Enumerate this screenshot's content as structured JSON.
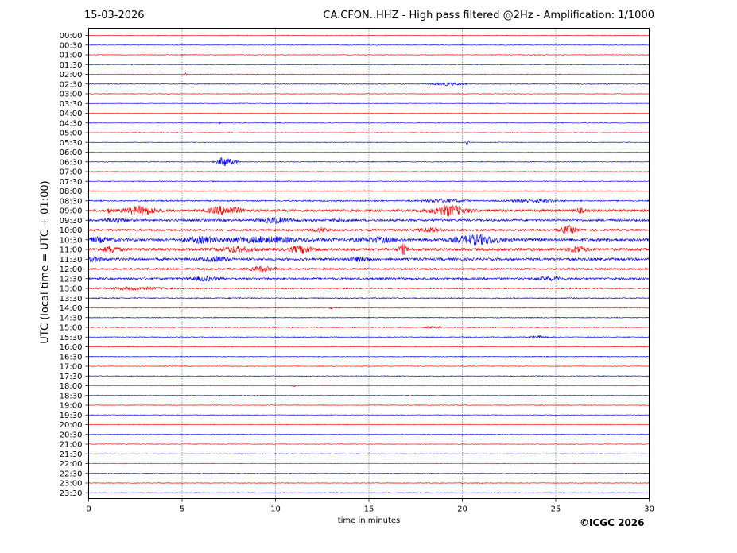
{
  "header": {
    "date": "15-03-2026",
    "station_title": "CA.CFON..HHZ - High pass filtered @2Hz - Amplification: 1/1000"
  },
  "footer": {
    "copyright": "©ICGC 2026"
  },
  "chart_data": {
    "type": "line",
    "title": "CA.CFON..HHZ - High pass filtered @2Hz - Amplification: 1/1000",
    "xlabel": "time in minutes",
    "ylabel": "UTC (local time = UTC + 01:00)",
    "xlim": [
      0,
      30
    ],
    "xticks": [
      "0",
      "5",
      "10",
      "15",
      "20",
      "25",
      "30"
    ],
    "vertical_gridlines_at": [
      5,
      10,
      15,
      20,
      25
    ],
    "row_labels": [
      "00:00",
      "00:30",
      "01:00",
      "01:30",
      "02:00",
      "02:30",
      "03:00",
      "03:30",
      "04:00",
      "04:30",
      "05:00",
      "05:30",
      "06:00",
      "06:30",
      "07:00",
      "07:30",
      "08:00",
      "08:30",
      "09:00",
      "09:30",
      "10:00",
      "10:30",
      "11:00",
      "11:30",
      "12:00",
      "12:30",
      "13:00",
      "13:30",
      "14:00",
      "14:30",
      "15:00",
      "15:30",
      "16:00",
      "16:30",
      "17:00",
      "17:30",
      "18:00",
      "18:30",
      "19:00",
      "19:30",
      "20:00",
      "20:30",
      "21:00",
      "21:30",
      "22:00",
      "22:30",
      "23:00",
      "23:30"
    ],
    "trace_colors": [
      "#ff0000",
      "#0000ff"
    ],
    "noise_level": [
      0.4,
      0.4,
      0.4,
      0.4,
      0.5,
      0.5,
      0.4,
      0.4,
      0.4,
      0.4,
      0.4,
      0.4,
      0.4,
      0.5,
      0.4,
      0.5,
      0.6,
      0.8,
      1.6,
      1.4,
      1.4,
      1.8,
      1.8,
      1.6,
      1.2,
      1.3,
      0.8,
      0.7,
      0.6,
      0.5,
      0.5,
      0.5,
      0.4,
      0.5,
      0.4,
      0.5,
      0.4,
      0.4,
      0.4,
      0.4,
      0.4,
      0.4,
      0.4,
      0.4,
      0.4,
      0.4,
      0.4,
      0.4
    ],
    "events": [
      {
        "row": 4,
        "minute": 5.2,
        "amplitude": 1.5,
        "width": 0.1
      },
      {
        "row": 5,
        "minute": 19.2,
        "amplitude": 1.8,
        "width": 0.8
      },
      {
        "row": 9,
        "minute": 7.0,
        "amplitude": 1.0,
        "width": 0.1
      },
      {
        "row": 11,
        "minute": 20.3,
        "amplitude": 3.0,
        "width": 0.1
      },
      {
        "row": 13,
        "minute": 7.2,
        "amplitude": 6.0,
        "width": 0.3
      },
      {
        "row": 13,
        "minute": 7.7,
        "amplitude": 2.5,
        "width": 0.3
      },
      {
        "row": 17,
        "minute": 19.0,
        "amplitude": 2.0,
        "width": 1.0
      },
      {
        "row": 17,
        "minute": 23.8,
        "amplitude": 2.0,
        "width": 1.2
      },
      {
        "row": 18,
        "minute": 1.1,
        "amplitude": 3.0,
        "width": 0.1
      },
      {
        "row": 18,
        "minute": 2.8,
        "amplitude": 5.0,
        "width": 0.8
      },
      {
        "row": 18,
        "minute": 7.3,
        "amplitude": 5.0,
        "width": 0.8
      },
      {
        "row": 18,
        "minute": 19.3,
        "amplitude": 6.0,
        "width": 0.9
      },
      {
        "row": 18,
        "minute": 26.3,
        "amplitude": 2.5,
        "width": 0.2
      },
      {
        "row": 19,
        "minute": 1.5,
        "amplitude": 2.0,
        "width": 0.6
      },
      {
        "row": 19,
        "minute": 10.0,
        "amplitude": 3.0,
        "width": 0.8
      },
      {
        "row": 19,
        "minute": 13.5,
        "amplitude": 2.5,
        "width": 0.3
      },
      {
        "row": 20,
        "minute": 12.5,
        "amplitude": 2.5,
        "width": 0.4
      },
      {
        "row": 20,
        "minute": 18.3,
        "amplitude": 2.5,
        "width": 0.6
      },
      {
        "row": 20,
        "minute": 25.7,
        "amplitude": 4.5,
        "width": 0.4
      },
      {
        "row": 21,
        "minute": 0.6,
        "amplitude": 2.5,
        "width": 0.6
      },
      {
        "row": 21,
        "minute": 6.0,
        "amplitude": 3.0,
        "width": 0.8
      },
      {
        "row": 21,
        "minute": 9.5,
        "amplitude": 3.0,
        "width": 2.0
      },
      {
        "row": 21,
        "minute": 15.5,
        "amplitude": 2.5,
        "width": 1.0
      },
      {
        "row": 21,
        "minute": 20.8,
        "amplitude": 5.0,
        "width": 1.2
      },
      {
        "row": 22,
        "minute": 1.2,
        "amplitude": 3.5,
        "width": 0.4
      },
      {
        "row": 22,
        "minute": 7.9,
        "amplitude": 3.0,
        "width": 0.8
      },
      {
        "row": 22,
        "minute": 11.4,
        "amplitude": 4.0,
        "width": 0.6
      },
      {
        "row": 22,
        "minute": 16.8,
        "amplitude": 6.0,
        "width": 0.2
      },
      {
        "row": 22,
        "minute": 26.2,
        "amplitude": 4.0,
        "width": 0.4
      },
      {
        "row": 23,
        "minute": 0.3,
        "amplitude": 2.5,
        "width": 0.4
      },
      {
        "row": 23,
        "minute": 6.8,
        "amplitude": 2.5,
        "width": 0.6
      },
      {
        "row": 23,
        "minute": 14.5,
        "amplitude": 2.0,
        "width": 0.6
      },
      {
        "row": 24,
        "minute": 9.3,
        "amplitude": 3.0,
        "width": 0.6
      },
      {
        "row": 25,
        "minute": 6.2,
        "amplitude": 2.5,
        "width": 0.6
      },
      {
        "row": 25,
        "minute": 24.7,
        "amplitude": 2.0,
        "width": 0.6
      },
      {
        "row": 26,
        "minute": 2.5,
        "amplitude": 1.5,
        "width": 1.5
      },
      {
        "row": 28,
        "minute": 13.0,
        "amplitude": 1.5,
        "width": 0.1
      },
      {
        "row": 30,
        "minute": 18.5,
        "amplitude": 1.5,
        "width": 0.4
      },
      {
        "row": 31,
        "minute": 24.0,
        "amplitude": 1.5,
        "width": 0.5
      },
      {
        "row": 36,
        "minute": 11.0,
        "amplitude": 1.2,
        "width": 0.1
      }
    ]
  }
}
